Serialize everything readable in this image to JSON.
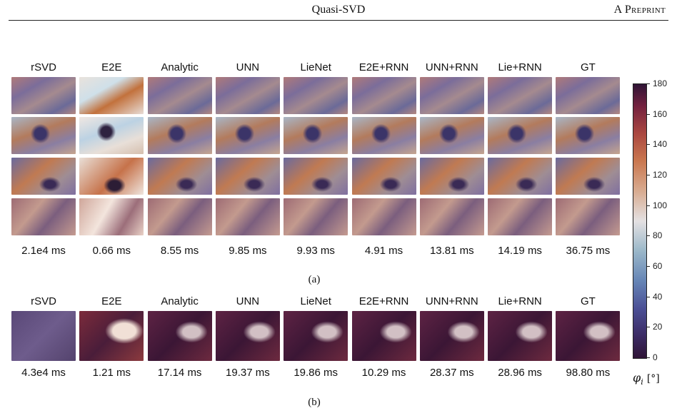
{
  "header": {
    "title": "Quasi-SVD",
    "right": "A Preprint"
  },
  "panel_a": {
    "columns": [
      "rSVD",
      "E2E",
      "Analytic",
      "UNN",
      "LieNet",
      "E2E+RNN",
      "UNN+RNN",
      "Lie+RNN",
      "GT"
    ],
    "timings": [
      "2.1e4 ms",
      "0.66 ms",
      "8.55 ms",
      "9.85 ms",
      "9.93 ms",
      "4.91 ms",
      "13.81 ms",
      "14.19 ms",
      "36.75 ms"
    ],
    "caption": "(a)"
  },
  "panel_b": {
    "columns": [
      "rSVD",
      "E2E",
      "Analytic",
      "UNN",
      "LieNet",
      "E2E+RNN",
      "UNN+RNN",
      "Lie+RNN",
      "GT"
    ],
    "timings": [
      "4.3e4 ms",
      "1.21 ms",
      "17.14 ms",
      "19.37 ms",
      "19.86 ms",
      "10.29 ms",
      "28.37 ms",
      "28.96 ms",
      "98.80 ms"
    ],
    "caption": "(b)"
  },
  "colorbar": {
    "ticks": [
      "0",
      "20",
      "40",
      "60",
      "80",
      "100",
      "120",
      "140",
      "160",
      "180"
    ],
    "min": 0,
    "max": 180,
    "label_symbol": "φ",
    "label_sub": "i",
    "label_unit": "[°]"
  }
}
